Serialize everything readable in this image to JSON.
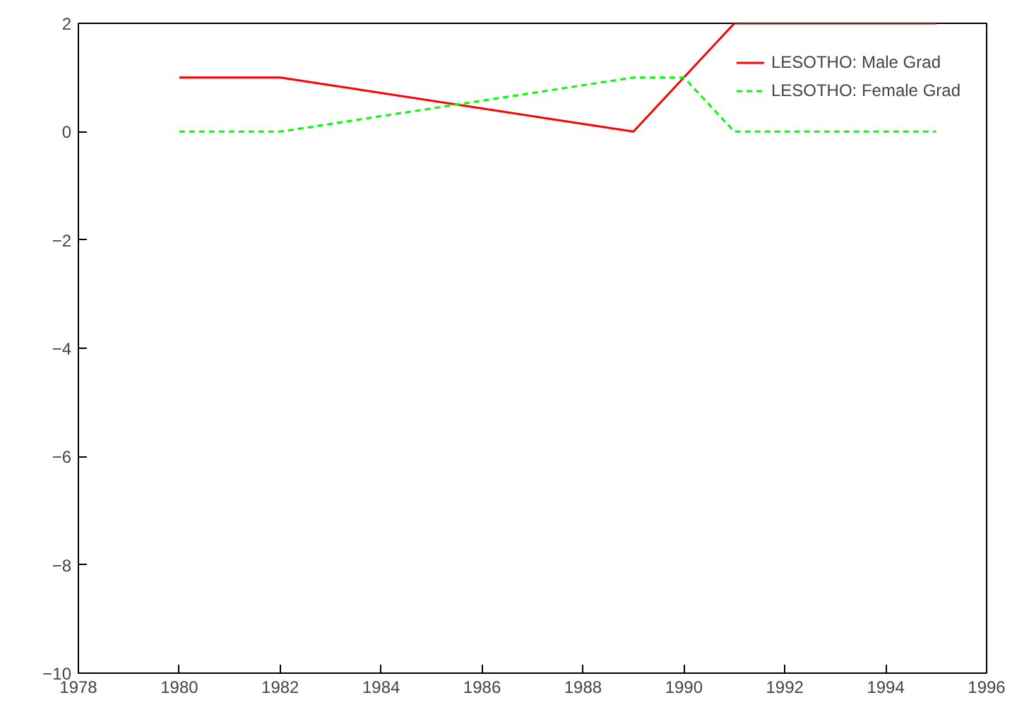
{
  "chart_data": {
    "type": "line",
    "x": [
      1980,
      1982,
      1989,
      1991,
      1995
    ],
    "series": [
      {
        "name": "LESOTHO: Male Grad",
        "color": "#ff0000",
        "line_style": "solid",
        "values": [
          1,
          1,
          0,
          2,
          2
        ]
      },
      {
        "name": "LESOTHO: Female Grad",
        "color": "#00ff00",
        "line_style": "dashed",
        "x": [
          1980,
          1982,
          1989,
          1990,
          1991,
          1995
        ],
        "values": [
          0,
          0,
          1,
          1,
          0,
          0
        ]
      }
    ],
    "xlim": [
      1978,
      1996
    ],
    "xticks": [
      1978,
      1980,
      1982,
      1984,
      1986,
      1988,
      1990,
      1992,
      1994,
      1996
    ],
    "ylim": [
      -10,
      2
    ],
    "yticks": [
      -10,
      -8,
      -6,
      -4,
      -2,
      0,
      2
    ],
    "grid": false,
    "legend": "top right"
  }
}
